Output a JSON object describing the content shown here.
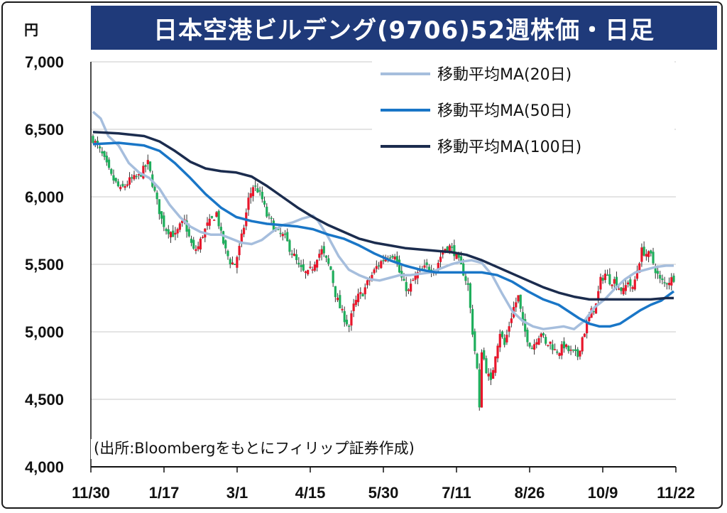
{
  "header": {
    "title": "日本空港ビルデング(9706)52週株価・日足",
    "unit": "円"
  },
  "chart_data": {
    "type": "candlestick",
    "title": "日本空港ビルデング(9706)52週株価・日足",
    "ylabel": "円",
    "ylim": [
      4000,
      7000
    ],
    "yticks": [
      "4,000",
      "4,500",
      "5,000",
      "5,500",
      "6,000",
      "6,500",
      "7,000"
    ],
    "ytick_values": [
      4000,
      4500,
      5000,
      5500,
      6000,
      6500,
      7000
    ],
    "xticks": [
      "11/30",
      "1/17",
      "3/1",
      "4/15",
      "5/30",
      "7/11",
      "8/26",
      "10/9",
      "11/22"
    ],
    "grid": true,
    "legend_position": "top-right",
    "note": "(出所:Bloombergをもとにフィリップ証券作成)",
    "colors": {
      "up": "#e8162b",
      "down": "#1fae5c",
      "ma20": "#a6bedd",
      "ma50": "#1976c7",
      "ma100": "#1b2c4e",
      "title_bg": "#1f3a7a"
    },
    "series": [
      {
        "name": "移動平均MA(20日)",
        "key": "ma20",
        "points": [
          [
            0,
            6630
          ],
          [
            3,
            6580
          ],
          [
            6,
            6450
          ],
          [
            10,
            6380
          ],
          [
            14,
            6250
          ],
          [
            18,
            6180
          ],
          [
            22,
            6140
          ],
          [
            26,
            6060
          ],
          [
            30,
            5940
          ],
          [
            34,
            5850
          ],
          [
            38,
            5780
          ],
          [
            42,
            5740
          ],
          [
            46,
            5720
          ],
          [
            50,
            5720
          ],
          [
            54,
            5690
          ],
          [
            58,
            5660
          ],
          [
            62,
            5650
          ],
          [
            66,
            5680
          ],
          [
            70,
            5740
          ],
          [
            74,
            5790
          ],
          [
            78,
            5810
          ],
          [
            82,
            5840
          ],
          [
            86,
            5860
          ],
          [
            88,
            5820
          ],
          [
            92,
            5700
          ],
          [
            96,
            5560
          ],
          [
            100,
            5460
          ],
          [
            104,
            5420
          ],
          [
            108,
            5390
          ],
          [
            112,
            5380
          ],
          [
            116,
            5400
          ],
          [
            120,
            5420
          ],
          [
            124,
            5420
          ],
          [
            128,
            5430
          ],
          [
            132,
            5440
          ],
          [
            136,
            5470
          ],
          [
            140,
            5500
          ],
          [
            144,
            5520
          ],
          [
            148,
            5530
          ],
          [
            152,
            5510
          ],
          [
            156,
            5420
          ],
          [
            160,
            5280
          ],
          [
            164,
            5150
          ],
          [
            168,
            5080
          ],
          [
            172,
            5040
          ],
          [
            176,
            5020
          ],
          [
            180,
            5030
          ],
          [
            184,
            5040
          ],
          [
            188,
            5020
          ],
          [
            192,
            5080
          ],
          [
            196,
            5180
          ],
          [
            200,
            5240
          ],
          [
            204,
            5320
          ],
          [
            208,
            5390
          ],
          [
            212,
            5440
          ],
          [
            216,
            5460
          ],
          [
            220,
            5480
          ],
          [
            224,
            5490
          ],
          [
            227,
            5490
          ]
        ]
      },
      {
        "name": "移動平均MA(50日)",
        "key": "ma50",
        "points": [
          [
            0,
            6390
          ],
          [
            10,
            6400
          ],
          [
            20,
            6380
          ],
          [
            26,
            6340
          ],
          [
            32,
            6250
          ],
          [
            38,
            6140
          ],
          [
            44,
            6020
          ],
          [
            50,
            5920
          ],
          [
            56,
            5850
          ],
          [
            62,
            5820
          ],
          [
            68,
            5800
          ],
          [
            74,
            5790
          ],
          [
            80,
            5780
          ],
          [
            86,
            5760
          ],
          [
            92,
            5720
          ],
          [
            98,
            5690
          ],
          [
            104,
            5640
          ],
          [
            110,
            5580
          ],
          [
            116,
            5530
          ],
          [
            122,
            5490
          ],
          [
            128,
            5460
          ],
          [
            134,
            5440
          ],
          [
            140,
            5440
          ],
          [
            146,
            5440
          ],
          [
            152,
            5440
          ],
          [
            158,
            5420
          ],
          [
            164,
            5370
          ],
          [
            170,
            5300
          ],
          [
            176,
            5240
          ],
          [
            182,
            5200
          ],
          [
            186,
            5150
          ],
          [
            190,
            5100
          ],
          [
            194,
            5060
          ],
          [
            198,
            5040
          ],
          [
            202,
            5040
          ],
          [
            206,
            5060
          ],
          [
            210,
            5110
          ],
          [
            214,
            5160
          ],
          [
            218,
            5200
          ],
          [
            222,
            5230
          ],
          [
            227,
            5300
          ]
        ]
      },
      {
        "name": "移動平均MA(100日)",
        "key": "ma100",
        "points": [
          [
            0,
            6480
          ],
          [
            10,
            6470
          ],
          [
            20,
            6450
          ],
          [
            26,
            6410
          ],
          [
            32,
            6340
          ],
          [
            38,
            6260
          ],
          [
            44,
            6210
          ],
          [
            50,
            6190
          ],
          [
            56,
            6180
          ],
          [
            62,
            6150
          ],
          [
            68,
            6080
          ],
          [
            74,
            6000
          ],
          [
            80,
            5920
          ],
          [
            86,
            5850
          ],
          [
            92,
            5790
          ],
          [
            98,
            5740
          ],
          [
            104,
            5690
          ],
          [
            110,
            5660
          ],
          [
            116,
            5640
          ],
          [
            122,
            5620
          ],
          [
            128,
            5610
          ],
          [
            134,
            5600
          ],
          [
            140,
            5590
          ],
          [
            146,
            5570
          ],
          [
            152,
            5530
          ],
          [
            158,
            5480
          ],
          [
            164,
            5430
          ],
          [
            170,
            5380
          ],
          [
            176,
            5330
          ],
          [
            182,
            5290
          ],
          [
            188,
            5260
          ],
          [
            194,
            5240
          ],
          [
            200,
            5240
          ],
          [
            206,
            5240
          ],
          [
            212,
            5240
          ],
          [
            218,
            5240
          ],
          [
            224,
            5250
          ],
          [
            227,
            5250
          ]
        ]
      }
    ],
    "close_path": [
      [
        0,
        6430
      ],
      [
        4,
        6310
      ],
      [
        8,
        6150
      ],
      [
        12,
        6050
      ],
      [
        16,
        6120
      ],
      [
        20,
        6150
      ],
      [
        24,
        6250
      ],
      [
        26,
        6100
      ],
      [
        28,
        5960
      ],
      [
        30,
        5830
      ],
      [
        32,
        5760
      ],
      [
        34,
        5740
      ],
      [
        36,
        5710
      ],
      [
        38,
        5780
      ],
      [
        40,
        5820
      ],
      [
        42,
        5700
      ],
      [
        44,
        5600
      ],
      [
        46,
        5630
      ],
      [
        48,
        5720
      ],
      [
        50,
        5790
      ],
      [
        52,
        5830
      ],
      [
        54,
        5880
      ],
      [
        56,
        5720
      ],
      [
        58,
        5600
      ],
      [
        60,
        5520
      ],
      [
        62,
        5500
      ],
      [
        64,
        5620
      ],
      [
        66,
        5780
      ],
      [
        68,
        5980
      ],
      [
        70,
        6080
      ],
      [
        72,
        6050
      ],
      [
        74,
        5980
      ],
      [
        76,
        5860
      ],
      [
        78,
        5820
      ],
      [
        80,
        5740
      ],
      [
        82,
        5720
      ],
      [
        84,
        5700
      ],
      [
        86,
        5620
      ],
      [
        88,
        5560
      ],
      [
        90,
        5480
      ],
      [
        92,
        5440
      ],
      [
        94,
        5430
      ],
      [
        96,
        5480
      ],
      [
        98,
        5560
      ],
      [
        100,
        5600
      ],
      [
        104,
        5460
      ],
      [
        106,
        5280
      ],
      [
        108,
        5180
      ],
      [
        110,
        5100
      ],
      [
        112,
        5040
      ],
      [
        114,
        5190
      ],
      [
        116,
        5260
      ],
      [
        118,
        5290
      ],
      [
        120,
        5360
      ],
      [
        122,
        5420
      ],
      [
        124,
        5480
      ],
      [
        126,
        5520
      ],
      [
        128,
        5560
      ],
      [
        132,
        5580
      ],
      [
        134,
        5440
      ],
      [
        136,
        5350
      ],
      [
        138,
        5300
      ],
      [
        140,
        5380
      ],
      [
        142,
        5430
      ],
      [
        144,
        5460
      ],
      [
        146,
        5480
      ],
      [
        148,
        5470
      ],
      [
        150,
        5470
      ],
      [
        152,
        5560
      ],
      [
        154,
        5620
      ],
      [
        156,
        5630
      ],
      [
        158,
        5590
      ],
      [
        160,
        5520
      ],
      [
        162,
        5440
      ],
      [
        164,
        5340
      ],
      [
        166,
        5000
      ],
      [
        168,
        4720
      ],
      [
        169,
        4420
      ],
      [
        170,
        4870
      ],
      [
        172,
        4720
      ],
      [
        174,
        4620
      ],
      [
        176,
        4840
      ],
      [
        178,
        5000
      ],
      [
        180,
        4900
      ],
      [
        182,
        5050
      ],
      [
        184,
        5180
      ],
      [
        186,
        5260
      ],
      [
        188,
        5050
      ],
      [
        190,
        4950
      ],
      [
        192,
        4880
      ],
      [
        194,
        4950
      ],
      [
        196,
        5000
      ],
      [
        198,
        4900
      ],
      [
        200,
        4920
      ],
      [
        202,
        4860
      ],
      [
        204,
        4860
      ],
      [
        206,
        4900
      ],
      [
        208,
        4860
      ],
      [
        210,
        4840
      ],
      [
        212,
        4820
      ],
      [
        214,
        4960
      ],
      [
        216,
        5050
      ],
      [
        218,
        5150
      ],
      [
        220,
        5200
      ],
      [
        222,
        5380
      ],
      [
        224,
        5430
      ],
      [
        226,
        5380
      ],
      [
        228,
        5380
      ],
      [
        230,
        5330
      ],
      [
        232,
        5300
      ],
      [
        234,
        5380
      ],
      [
        236,
        5310
      ],
      [
        238,
        5460
      ],
      [
        240,
        5600
      ],
      [
        242,
        5580
      ],
      [
        244,
        5560
      ],
      [
        246,
        5460
      ],
      [
        248,
        5380
      ],
      [
        250,
        5360
      ],
      [
        252,
        5380
      ],
      [
        254,
        5400
      ]
    ]
  },
  "note_text": "(出所:Bloombergをもとにフィリップ証券作成)"
}
